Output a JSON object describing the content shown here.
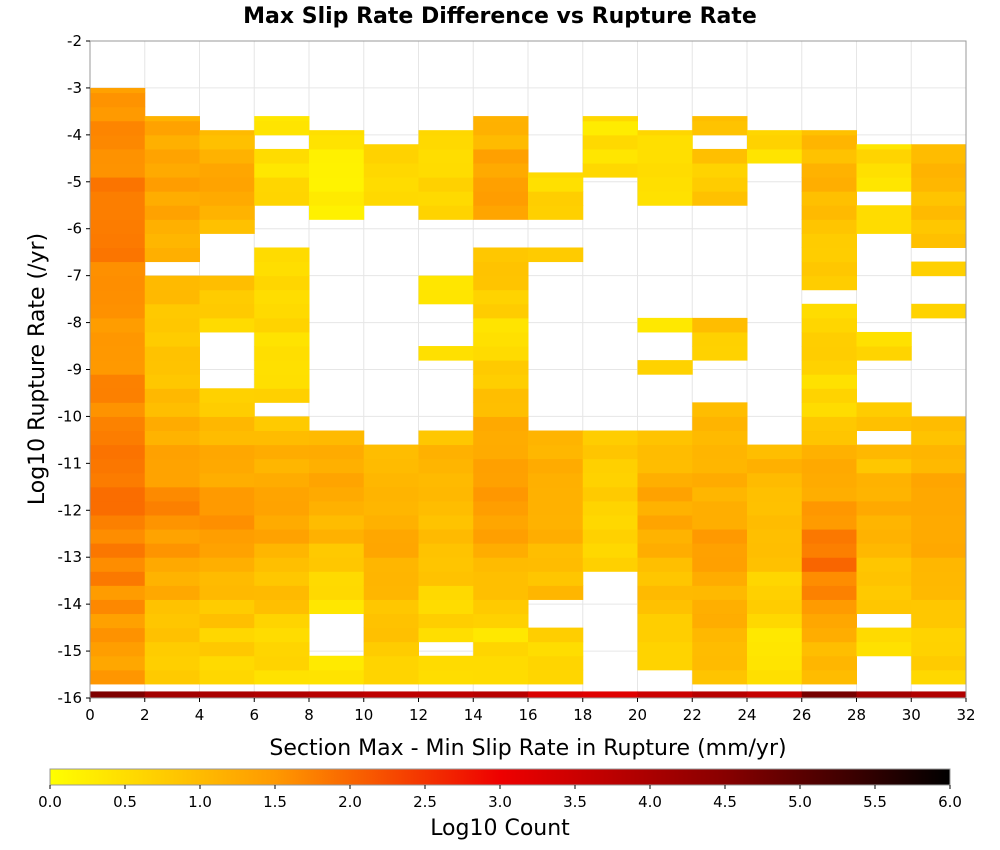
{
  "chart_data": {
    "type": "heatmap",
    "title": "Max Slip Rate Difference vs Rupture Rate",
    "xlabel": "Section Max - Min Slip Rate in Rupture (mm/yr)",
    "ylabel": "Log10 Rupture Rate (/yr)",
    "xlim": [
      0,
      32
    ],
    "ylim": [
      -16,
      -2
    ],
    "x_ticks": [
      "0",
      "2",
      "4",
      "6",
      "8",
      "10",
      "12",
      "14",
      "16",
      "18",
      "20",
      "22",
      "24",
      "26",
      "28",
      "30",
      "32"
    ],
    "y_ticks": [
      "-2",
      "-3",
      "-4",
      "-5",
      "-6",
      "-7",
      "-8",
      "-9",
      "-10",
      "-11",
      "-12",
      "-13",
      "-14",
      "-15",
      "-16"
    ],
    "x_bin_width": 2,
    "y_bin_height": 0.3,
    "grid": true,
    "colorbar": {
      "label": "Log10 Count",
      "range": [
        0,
        6
      ],
      "ticks": [
        "0.0",
        "0.5",
        "1.0",
        "1.5",
        "2.0",
        "2.5",
        "3.0",
        "3.5",
        "4.0",
        "4.5",
        "5.0",
        "5.5",
        "6.0"
      ],
      "stops": [
        {
          "value": 0.0,
          "color": "#ffff00"
        },
        {
          "value": 1.5,
          "color": "#ff9900"
        },
        {
          "value": 3.0,
          "color": "#ee0000"
        },
        {
          "value": 4.5,
          "color": "#880000"
        },
        {
          "value": 6.0,
          "color": "#000000"
        }
      ]
    },
    "columns": [
      {
        "x": 1,
        "y_range": [
          -16,
          -3.0
        ],
        "base": 1.45,
        "peaks": [
          {
            "y": -5.5,
            "v": 1.8
          },
          {
            "y": -11.5,
            "v": 1.95
          },
          {
            "y": -15.2,
            "v": 1.1
          }
        ]
      },
      {
        "x": 3,
        "y_range": [
          -16,
          -3.6
        ],
        "base": 0.75,
        "peaks": [
          {
            "y": -5.0,
            "v": 1.45
          },
          {
            "y": -12.0,
            "v": 1.6
          }
        ],
        "gaps": [
          [
            -7.0,
            -6.7
          ]
        ]
      },
      {
        "x": 5,
        "y_range": [
          -16,
          -3.9
        ],
        "base": 0.6,
        "peaks": [
          {
            "y": -5.0,
            "v": 1.2
          },
          {
            "y": -12.0,
            "v": 1.5
          }
        ],
        "gaps": [
          [
            -6.0,
            -7.0
          ],
          [
            -9.3,
            -8.2
          ]
        ]
      },
      {
        "x": 7,
        "y_range": [
          -16,
          -3.6
        ],
        "base": 0.5,
        "peaks": [
          {
            "y": -12.0,
            "v": 1.4
          }
        ],
        "gaps": [
          [
            -3.9,
            -4.2
          ],
          [
            -6.5,
            -5.6
          ],
          [
            -9.9,
            -9.6
          ],
          [
            -8.0,
            -7.9
          ]
        ]
      },
      {
        "x": 9,
        "y_range": [
          -16,
          -3.9
        ],
        "base": 0.3,
        "peaks": [
          {
            "y": -11.5,
            "v": 1.3
          }
        ],
        "gaps": [
          [
            -10.2,
            -5.8
          ],
          [
            -15.1,
            -14.2
          ]
        ]
      },
      {
        "x": 11,
        "y_range": [
          -16,
          -4.2
        ],
        "base": 0.5,
        "peaks": [
          {
            "y": -12.5,
            "v": 1.3
          }
        ],
        "gaps": [
          [
            -10.5,
            -5.4
          ]
        ]
      },
      {
        "x": 13,
        "y_range": [
          -16,
          -3.9
        ],
        "base": 0.5,
        "peaks": [
          {
            "y": -11.5,
            "v": 1.2
          }
        ],
        "gaps": [
          [
            -10.2,
            -8.7
          ],
          [
            -8.4,
            -7.7
          ],
          [
            -7.0,
            -5.8
          ],
          [
            -15.2,
            -14.8
          ]
        ]
      },
      {
        "x": 15,
        "y_range": [
          -16,
          -3.6
        ],
        "base": 0.5,
        "peaks": [
          {
            "y": -5.0,
            "v": 1.4
          },
          {
            "y": -11.5,
            "v": 1.6
          }
        ],
        "gaps": [
          [
            -6.4,
            -5.8
          ]
        ]
      },
      {
        "x": 17,
        "y_range": [
          -16,
          -4.8
        ],
        "base": 0.6,
        "peaks": [
          {
            "y": -12.0,
            "v": 1.3
          }
        ],
        "gaps": [
          [
            -14.5,
            -13.9
          ],
          [
            -10.2,
            -9.2
          ],
          [
            -9.0,
            -6.8
          ],
          [
            -6.5,
            -5.8
          ]
        ]
      },
      {
        "x": 19,
        "y_range": [
          -16,
          -3.6
        ],
        "base": 0.4,
        "peaks": [
          {
            "y": -11.5,
            "v": 0.8
          }
        ],
        "gaps": [
          [
            -16.0,
            -13.3
          ],
          [
            -12.8,
            -12.6
          ],
          [
            -10.4,
            -5.0
          ]
        ]
      },
      {
        "x": 21,
        "y_range": [
          -16,
          -3.9
        ],
        "base": 0.5,
        "peaks": [
          {
            "y": -12.0,
            "v": 1.3
          }
        ],
        "gaps": [
          [
            -15.6,
            -15.5
          ],
          [
            -10.3,
            -9.0
          ],
          [
            -8.7,
            -8.2
          ],
          [
            -7.9,
            -5.6
          ]
        ]
      },
      {
        "x": 23,
        "y_range": [
          -16,
          -3.6
        ],
        "base": 0.8,
        "peaks": [
          {
            "y": -12.5,
            "v": 1.4
          }
        ],
        "gaps": [
          [
            -9.6,
            -8.7
          ],
          [
            -7.9,
            -5.6
          ],
          [
            -4.2,
            -3.9
          ]
        ]
      },
      {
        "x": 25,
        "y_range": [
          -16,
          -3.9
        ],
        "base": 0.5,
        "peaks": [
          {
            "y": -11.5,
            "v": 1.1
          }
        ],
        "gaps": [
          [
            -14.0,
            -13.8
          ],
          [
            -10.5,
            -4.7
          ],
          [
            -15.6,
            -15.6
          ]
        ]
      },
      {
        "x": 27,
        "y_range": [
          -16,
          -3.9
        ],
        "base": 0.6,
        "peaks": [
          {
            "y": -13.0,
            "v": 1.9
          },
          {
            "y": -5.0,
            "v": 1.1
          }
        ],
        "gaps": [
          [
            -4.4,
            -4.2
          ],
          [
            -7.6,
            -7.3
          ]
        ]
      },
      {
        "x": 29,
        "y_range": [
          -16,
          -4.2
        ],
        "base": 0.5,
        "peaks": [
          {
            "y": -12.0,
            "v": 1.1
          }
        ],
        "gaps": [
          [
            -15.9,
            -15.0
          ],
          [
            -14.5,
            -14.2
          ],
          [
            -10.7,
            -10.4
          ],
          [
            -9.6,
            -8.8
          ],
          [
            -8.1,
            -6.1
          ],
          [
            -5.5,
            -5.3
          ]
        ]
      },
      {
        "x": 31,
        "y_range": [
          -16,
          -4.2
        ],
        "base": 0.6,
        "peaks": [
          {
            "y": -12.0,
            "v": 1.4
          },
          {
            "y": -5.0,
            "v": 1.0
          }
        ],
        "gaps": [
          [
            -9.9,
            -8.0
          ],
          [
            -7.6,
            -7.0
          ],
          [
            -6.8,
            -6.3
          ]
        ]
      }
    ],
    "bottom_row": {
      "y": -15.9,
      "values": [
        4.6,
        4.1,
        4.0,
        3.9,
        3.8,
        3.7,
        3.7,
        3.8,
        3.3,
        3.2,
        3.5,
        3.8,
        3.6,
        4.7,
        4.1,
        3.9
      ]
    }
  }
}
